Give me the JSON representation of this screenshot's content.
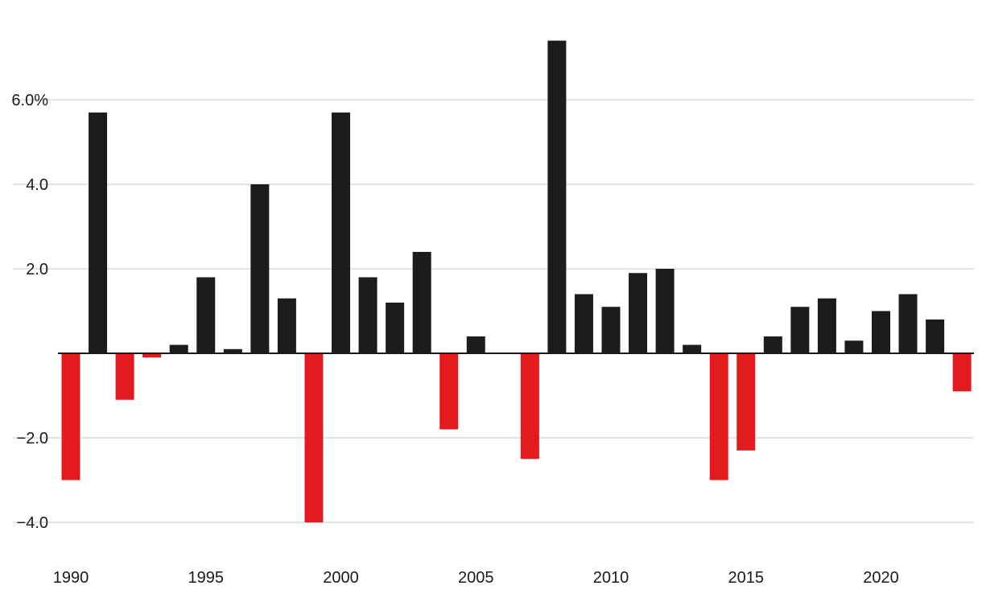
{
  "chart_data": {
    "type": "bar",
    "title": "",
    "xlabel": "",
    "ylabel": "",
    "ylim": [
      -4.8,
      7.5
    ],
    "grid": true,
    "colors": {
      "positive": "#1c1c1c",
      "negative": "#e31b1e",
      "grid": "#dcdcdc",
      "axis": "#1a1a1a",
      "text": "#1a1a1a"
    },
    "y_ticks": [
      {
        "value": 6,
        "label": "6.0%"
      },
      {
        "value": 4,
        "label": "4.0"
      },
      {
        "value": 2,
        "label": "2.0"
      },
      {
        "value": -2,
        "label": "−2.0"
      },
      {
        "value": -4,
        "label": "−4.0"
      }
    ],
    "x_ticks": [
      {
        "value": 1990,
        "label": "1990"
      },
      {
        "value": 1995,
        "label": "1995"
      },
      {
        "value": 2000,
        "label": "2000"
      },
      {
        "value": 2005,
        "label": "2005"
      },
      {
        "value": 2010,
        "label": "2010"
      },
      {
        "value": 2015,
        "label": "2015"
      },
      {
        "value": 2020,
        "label": "2020"
      }
    ],
    "categories": [
      1990,
      1991,
      1992,
      1993,
      1994,
      1995,
      1996,
      1997,
      1998,
      1999,
      2000,
      2001,
      2002,
      2003,
      2004,
      2005,
      2006,
      2007,
      2008,
      2009,
      2010,
      2011,
      2012,
      2013,
      2014,
      2015,
      2016,
      2017,
      2018,
      2019,
      2020,
      2021,
      2022,
      2023
    ],
    "values": [
      -3.0,
      5.7,
      -1.1,
      -0.1,
      0.2,
      1.8,
      0.1,
      4.0,
      1.3,
      -4.0,
      5.7,
      1.8,
      1.2,
      2.4,
      -1.8,
      0.4,
      0.0,
      -2.5,
      7.4,
      1.4,
      1.1,
      1.9,
      2.0,
      0.2,
      -3.0,
      -2.3,
      0.4,
      1.1,
      1.3,
      0.3,
      1.0,
      1.4,
      0.8,
      -0.9
    ]
  }
}
